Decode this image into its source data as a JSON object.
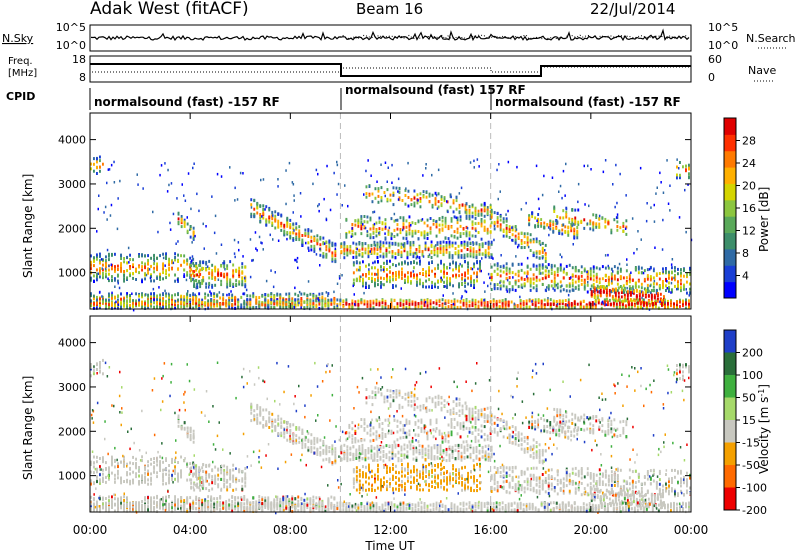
{
  "header": {
    "radar": "Adak West (fitACF)",
    "beam": "Beam 16",
    "date": "22/Jul/2014"
  },
  "panels": {
    "nsky": {
      "label": "N.Sky",
      "right_label": "N.Search",
      "ticks": [
        "10^5",
        "10^0"
      ]
    },
    "freq": {
      "label_line1": "Freq.",
      "label_line2": "[MHz]",
      "ticks": [
        "18",
        "8"
      ],
      "right_label": "Nave",
      "right_ticks": [
        "60",
        "0"
      ]
    },
    "cpid": {
      "label": "CPID",
      "segments": [
        "normalsound (fast) -157 RF",
        "normalsound (fast) 157 RF",
        "normalsound (fast) -157 RF"
      ]
    }
  },
  "chart_data": [
    {
      "type": "heatmap",
      "title": "",
      "ylabel": "Slant Range [km]",
      "xlabel": "",
      "x_range_hours": [
        0,
        24
      ],
      "ylim": [
        180,
        4600
      ],
      "yticks": [
        1000,
        2000,
        3000,
        4000
      ],
      "colorbar": {
        "label": "Power [dB]",
        "ticks": [
          4,
          8,
          12,
          16,
          20,
          24,
          28
        ],
        "colors": [
          "#0000ff",
          "#1a3fd6",
          "#2f6aa5",
          "#3d8e6a",
          "#5aa95a",
          "#8cc63f",
          "#d4d400",
          "#ffb000",
          "#ff7a00",
          "#ff3000",
          "#e00000"
        ]
      }
    },
    {
      "type": "heatmap",
      "title": "",
      "ylabel": "Slant Range [km]",
      "xlabel": "Time UT",
      "x_range_hours": [
        0,
        24
      ],
      "xticks": [
        "00:00",
        "04:00",
        "08:00",
        "12:00",
        "16:00",
        "20:00",
        "00:00"
      ],
      "ylim": [
        180,
        4600
      ],
      "yticks": [
        1000,
        2000,
        3000,
        4000
      ],
      "colorbar": {
        "label": "Velocity [m s^-1]",
        "ticks": [
          200,
          100,
          50,
          15,
          -15,
          -50,
          -100,
          -200
        ],
        "colors": [
          "#1f3fc8",
          "#2a6e3a",
          "#3fb03f",
          "#a6d96a",
          "#c8c8c0",
          "#f4a000",
          "#ff6a00",
          "#ee0000"
        ]
      }
    }
  ]
}
